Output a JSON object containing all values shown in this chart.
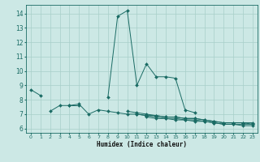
{
  "title": "",
  "xlabel": "Humidex (Indice chaleur)",
  "xlim": [
    -0.5,
    23.5
  ],
  "ylim": [
    5.7,
    14.6
  ],
  "yticks": [
    6,
    7,
    8,
    9,
    10,
    11,
    12,
    13,
    14
  ],
  "xticks": [
    0,
    1,
    2,
    3,
    4,
    5,
    6,
    7,
    8,
    9,
    10,
    11,
    12,
    13,
    14,
    15,
    16,
    17,
    18,
    19,
    20,
    21,
    22,
    23
  ],
  "bg_color": "#cce8e5",
  "line_color": "#1a6b64",
  "grid_color": "#a8cfc9",
  "lines": [
    [
      8.7,
      8.3,
      null,
      null,
      7.6,
      7.6,
      null,
      null,
      8.2,
      13.8,
      14.2,
      9.0,
      10.5,
      9.6,
      9.6,
      9.5,
      7.3,
      7.1,
      null,
      null,
      null,
      null,
      null,
      null
    ],
    [
      null,
      null,
      7.2,
      7.6,
      7.6,
      7.7,
      7.0,
      7.3,
      7.2,
      7.1,
      7.0,
      7.0,
      6.9,
      6.9,
      6.8,
      6.8,
      6.7,
      6.7,
      6.6,
      6.5,
      6.4,
      6.4,
      6.4,
      6.4
    ],
    [
      null,
      null,
      null,
      null,
      null,
      null,
      null,
      null,
      null,
      null,
      7.2,
      7.1,
      7.0,
      6.9,
      6.8,
      6.8,
      6.7,
      6.7,
      6.6,
      6.5,
      6.4,
      6.4,
      6.4,
      6.3
    ],
    [
      null,
      null,
      null,
      null,
      null,
      null,
      null,
      null,
      null,
      null,
      null,
      7.0,
      6.9,
      6.8,
      6.7,
      6.7,
      6.6,
      6.6,
      6.5,
      6.4,
      6.3,
      6.3,
      6.3,
      6.3
    ],
    [
      null,
      null,
      null,
      null,
      null,
      null,
      null,
      null,
      null,
      null,
      null,
      null,
      6.8,
      6.7,
      6.7,
      6.6,
      6.6,
      6.5,
      6.5,
      6.4,
      6.3,
      6.3,
      6.2,
      6.2
    ]
  ]
}
